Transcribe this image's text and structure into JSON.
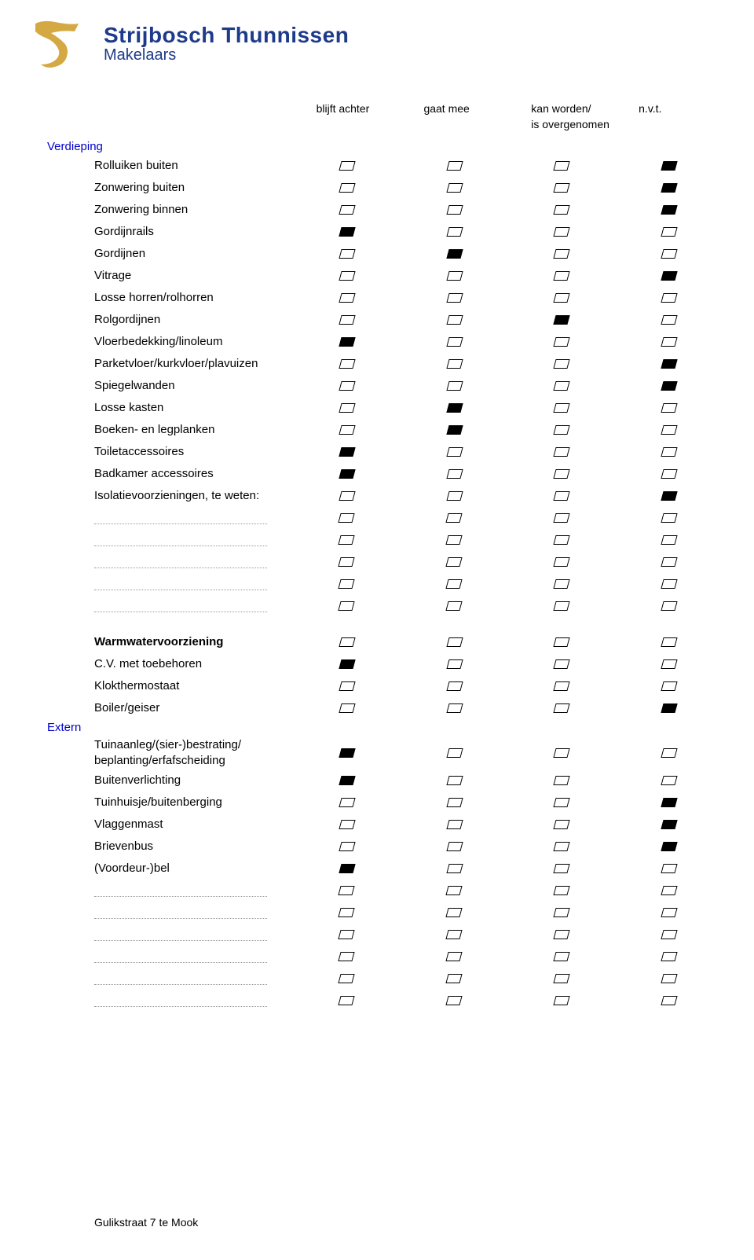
{
  "logo": {
    "company_name": "Strijbosch Thunnissen",
    "subtitle": "Makelaars",
    "icon_color": "#d4a943",
    "text_color": "#1e3a8a"
  },
  "columns": {
    "col1": "blijft achter",
    "col2": "gaat mee",
    "col3": "kan worden/",
    "col3_sub": "is overgenomen",
    "col4": "n.v.t."
  },
  "section_colors": {
    "title": "#0000cc"
  },
  "sections": [
    {
      "title": "Verdieping",
      "rows": [
        {
          "label": "Rolluiken buiten",
          "checks": [
            false,
            false,
            false,
            true
          ]
        },
        {
          "label": "Zonwering buiten",
          "checks": [
            false,
            false,
            false,
            true
          ]
        },
        {
          "label": "Zonwering binnen",
          "checks": [
            false,
            false,
            false,
            true
          ]
        },
        {
          "label": "Gordijnrails",
          "checks": [
            true,
            false,
            false,
            false
          ]
        },
        {
          "label": "Gordijnen",
          "checks": [
            false,
            true,
            false,
            false
          ]
        },
        {
          "label": "Vitrage",
          "checks": [
            false,
            false,
            false,
            true
          ]
        },
        {
          "label": "Losse horren/rolhorren",
          "checks": [
            false,
            false,
            false,
            false
          ]
        },
        {
          "label": "Rolgordijnen",
          "checks": [
            false,
            false,
            true,
            false
          ]
        },
        {
          "label": "Vloerbedekking/linoleum",
          "checks": [
            true,
            false,
            false,
            false
          ]
        },
        {
          "label": "Parketvloer/kurkvloer/plavuizen",
          "checks": [
            false,
            false,
            false,
            true
          ]
        },
        {
          "label": "Spiegelwanden",
          "checks": [
            false,
            false,
            false,
            true
          ]
        },
        {
          "label": "Losse kasten",
          "checks": [
            false,
            true,
            false,
            false
          ]
        },
        {
          "label": "Boeken- en legplanken",
          "checks": [
            false,
            true,
            false,
            false
          ]
        },
        {
          "label": "Toiletaccessoires",
          "checks": [
            true,
            false,
            false,
            false
          ]
        },
        {
          "label": "Badkamer accessoires",
          "checks": [
            true,
            false,
            false,
            false
          ]
        },
        {
          "label": "Isolatievoorzieningen, te weten:",
          "checks": [
            false,
            false,
            false,
            true
          ]
        },
        {
          "label": "",
          "dotted": true,
          "checks": [
            false,
            false,
            false,
            false
          ]
        },
        {
          "label": "",
          "dotted": true,
          "checks": [
            false,
            false,
            false,
            false
          ]
        },
        {
          "label": "",
          "dotted": true,
          "checks": [
            false,
            false,
            false,
            false
          ]
        },
        {
          "label": "",
          "dotted": true,
          "checks": [
            false,
            false,
            false,
            false
          ]
        },
        {
          "label": "",
          "dotted": true,
          "checks": [
            false,
            false,
            false,
            false
          ]
        }
      ]
    },
    {
      "title": "",
      "rows": [
        {
          "label": "Warmwatervoorziening",
          "bold": true,
          "checks": [
            false,
            false,
            false,
            false
          ]
        },
        {
          "label": "C.V. met toebehoren",
          "checks": [
            true,
            false,
            false,
            false
          ]
        },
        {
          "label": "Klokthermostaat",
          "checks": [
            false,
            false,
            false,
            false
          ]
        },
        {
          "label": "Boiler/geiser",
          "checks": [
            false,
            false,
            false,
            true
          ]
        }
      ]
    },
    {
      "title": "Extern",
      "rows": [
        {
          "label": "Tuinaanleg/(sier-)bestrating/\nbeplanting/erfafscheiding",
          "multiline": true,
          "checks": [
            true,
            false,
            false,
            false
          ]
        },
        {
          "label": "Buitenverlichting",
          "checks": [
            true,
            false,
            false,
            false
          ]
        },
        {
          "label": "Tuinhuisje/buitenberging",
          "checks": [
            false,
            false,
            false,
            true
          ]
        },
        {
          "label": "Vlaggenmast",
          "checks": [
            false,
            false,
            false,
            true
          ]
        },
        {
          "label": "Brievenbus",
          "checks": [
            false,
            false,
            false,
            true
          ]
        },
        {
          "label": "(Voordeur-)bel",
          "checks": [
            true,
            false,
            false,
            false
          ]
        },
        {
          "label": "",
          "dotted": true,
          "checks": [
            false,
            false,
            false,
            false
          ]
        },
        {
          "label": "",
          "dotted": true,
          "checks": [
            false,
            false,
            false,
            false
          ]
        },
        {
          "label": "",
          "dotted": true,
          "checks": [
            false,
            false,
            false,
            false
          ]
        },
        {
          "label": "",
          "dotted": true,
          "checks": [
            false,
            false,
            false,
            false
          ]
        },
        {
          "label": "",
          "dotted": true,
          "checks": [
            false,
            false,
            false,
            false
          ]
        },
        {
          "label": "",
          "dotted": true,
          "checks": [
            false,
            false,
            false,
            false
          ]
        }
      ]
    }
  ],
  "footer": "Gulikstraat 7 te Mook"
}
